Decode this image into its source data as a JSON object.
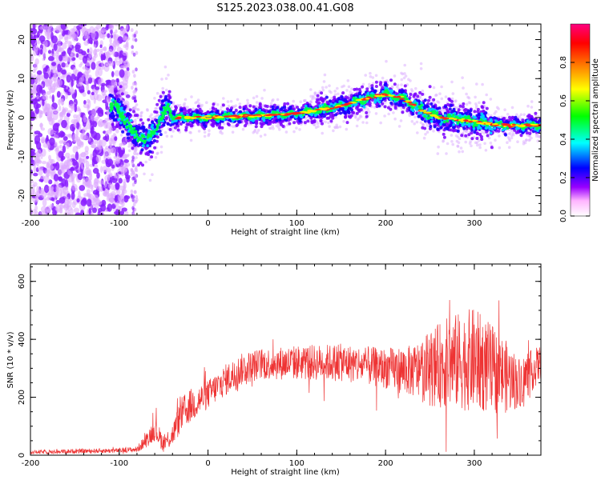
{
  "chart_data": [
    {
      "type": "heatmap",
      "title": "S125.2023.038.00.41.G08",
      "xlabel": "Height of straight line (km)",
      "ylabel": "Frequency (Hz)",
      "xlim": [
        -200,
        375
      ],
      "ylim": [
        -25,
        24
      ],
      "xticks": [
        -200,
        -100,
        0,
        100,
        200,
        300
      ],
      "yticks": [
        -20,
        -10,
        0,
        10,
        20
      ],
      "ridge": {
        "x": [
          -105,
          -95,
          -85,
          -75,
          -68,
          -60,
          -52,
          -45,
          -40,
          -30,
          0,
          50,
          100,
          150,
          180,
          200,
          220,
          240,
          260,
          300,
          330,
          375
        ],
        "y": [
          3,
          0,
          -4,
          -5,
          -6,
          -3,
          0,
          3,
          0,
          0,
          0,
          0.5,
          1,
          3,
          5,
          6,
          5,
          2,
          0,
          -1,
          -2,
          -2
        ]
      },
      "colorbar": {
        "label": "Normalized spectral amplitude",
        "ticks": [
          0.0,
          0.2,
          0.4,
          0.6,
          0.8
        ],
        "range": [
          0,
          1
        ],
        "colors": [
          "#ffffff",
          "#ffb3ff",
          "#9900ff",
          "#0000ff",
          "#00ffff",
          "#00ff00",
          "#ffff00",
          "#ff8000",
          "#ff0000",
          "#ff0080"
        ]
      }
    },
    {
      "type": "line",
      "xlabel": "Height of straight line (km)",
      "ylabel": "SNR (10 * v/v)",
      "xlim": [
        -200,
        375
      ],
      "ylim": [
        0,
        660
      ],
      "xticks": [
        -200,
        -100,
        0,
        100,
        200,
        300
      ],
      "yticks": [
        0,
        200,
        400,
        600
      ],
      "color": "#ee3333",
      "envelope": {
        "x": [
          -200,
          -150,
          -100,
          -80,
          -70,
          -60,
          -50,
          -40,
          -30,
          -20,
          0,
          20,
          40,
          60,
          100,
          150,
          200,
          230,
          250,
          270,
          300,
          330,
          350,
          375
        ],
        "mean": [
          10,
          14,
          16,
          20,
          50,
          90,
          40,
          70,
          140,
          170,
          210,
          260,
          300,
          315,
          320,
          320,
          300,
          290,
          300,
          320,
          330,
          280,
          250,
          320
        ],
        "spread": [
          6,
          8,
          8,
          10,
          25,
          40,
          30,
          40,
          60,
          60,
          50,
          55,
          55,
          55,
          60,
          65,
          70,
          90,
          130,
          160,
          180,
          140,
          90,
          60
        ]
      }
    }
  ]
}
